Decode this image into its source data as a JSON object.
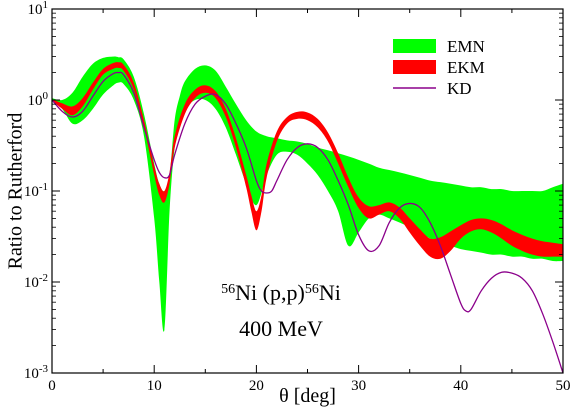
{
  "chart_data": {
    "type": "line",
    "xlabel": "θ [deg]",
    "ylabel": "Ratio to Rutherford",
    "xlim": [
      0,
      50
    ],
    "ylim": [
      0.001,
      10
    ],
    "yscale": "log",
    "grid": false,
    "legend_position": "top-right",
    "x_ticks": [
      "0",
      "10",
      "20",
      "30",
      "40",
      "50"
    ],
    "y_ticks": [
      {
        "base": "10",
        "exp": "-3"
      },
      {
        "base": "10",
        "exp": "-2"
      },
      {
        "base": "10",
        "exp": "-1"
      },
      {
        "base": "10",
        "exp": "0"
      },
      {
        "base": "10",
        "exp": "1"
      }
    ],
    "annotation": {
      "line1": {
        "pre": "56",
        "mid": "Ni (p,p)",
        "post_sup": "56",
        "post": "Ni"
      },
      "line2": "400 MeV"
    },
    "series": [
      {
        "name": "EMN",
        "style": "band",
        "color": "#00ff00",
        "x": [
          0,
          1,
          2,
          3,
          4,
          5,
          6,
          6.5,
          7,
          8,
          9,
          10,
          10.5,
          11,
          11.5,
          12,
          12.5,
          13,
          14,
          15,
          16,
          17,
          18,
          19,
          20,
          21,
          22,
          23,
          24,
          25,
          26,
          27,
          28,
          29,
          30,
          31,
          32,
          33,
          34,
          35,
          36,
          37,
          38,
          39,
          40,
          41,
          42,
          43,
          44,
          45,
          46,
          47,
          48,
          49,
          50
        ],
        "lower": [
          1.0,
          0.8,
          0.55,
          0.6,
          0.8,
          1.15,
          1.45,
          1.55,
          1.5,
          1.0,
          0.4,
          0.05,
          0.01,
          0.003,
          0.06,
          0.3,
          0.6,
          0.8,
          1.0,
          1.0,
          0.8,
          0.5,
          0.25,
          0.12,
          0.07,
          0.15,
          0.25,
          0.27,
          0.25,
          0.2,
          0.15,
          0.1,
          0.06,
          0.025,
          0.035,
          0.05,
          0.055,
          0.05,
          0.045,
          0.04,
          0.035,
          0.03,
          0.027,
          0.025,
          0.023,
          0.022,
          0.021,
          0.02,
          0.02,
          0.019,
          0.019,
          0.018,
          0.018,
          0.017,
          0.017
        ],
        "upper": [
          1.05,
          1.0,
          1.2,
          1.8,
          2.5,
          2.9,
          3.0,
          2.95,
          2.8,
          1.8,
          0.7,
          0.2,
          0.12,
          0.1,
          0.15,
          0.6,
          1.1,
          1.6,
          2.2,
          2.4,
          2.1,
          1.4,
          0.9,
          0.6,
          0.45,
          0.4,
          0.38,
          0.36,
          0.35,
          0.33,
          0.3,
          0.28,
          0.26,
          0.24,
          0.22,
          0.2,
          0.18,
          0.17,
          0.16,
          0.15,
          0.14,
          0.13,
          0.125,
          0.12,
          0.115,
          0.11,
          0.11,
          0.105,
          0.105,
          0.1,
          0.1,
          0.1,
          0.1,
          0.11,
          0.12
        ]
      },
      {
        "name": "EKM",
        "style": "band",
        "color": "#ff0000",
        "x": [
          0,
          1,
          2,
          3,
          4,
          5,
          6,
          6.5,
          7,
          8,
          9,
          10,
          10.5,
          11,
          11.5,
          12,
          13,
          14,
          15,
          16,
          17,
          18,
          19,
          19.5,
          20,
          20.5,
          21,
          22,
          23,
          24,
          25,
          26,
          27,
          28,
          29,
          30,
          31,
          32,
          33,
          34,
          35,
          36,
          37,
          38,
          39,
          40,
          41,
          42,
          43,
          44,
          45,
          46,
          47,
          48,
          49,
          50
        ],
        "lower": [
          0.98,
          0.8,
          0.68,
          0.85,
          1.3,
          1.9,
          2.2,
          2.25,
          2.1,
          1.3,
          0.5,
          0.15,
          0.09,
          0.075,
          0.12,
          0.3,
          0.7,
          1.05,
          1.2,
          1.05,
          0.65,
          0.3,
          0.11,
          0.06,
          0.037,
          0.06,
          0.14,
          0.35,
          0.55,
          0.62,
          0.6,
          0.5,
          0.35,
          0.2,
          0.11,
          0.065,
          0.05,
          0.055,
          0.06,
          0.05,
          0.035,
          0.025,
          0.019,
          0.018,
          0.022,
          0.03,
          0.036,
          0.038,
          0.035,
          0.03,
          0.025,
          0.022,
          0.02,
          0.019,
          0.019,
          0.019
        ],
        "upper": [
          1.02,
          0.92,
          0.85,
          1.05,
          1.55,
          2.2,
          2.55,
          2.6,
          2.45,
          1.55,
          0.6,
          0.19,
          0.12,
          0.1,
          0.16,
          0.4,
          0.9,
          1.3,
          1.45,
          1.25,
          0.8,
          0.38,
          0.15,
          0.09,
          0.06,
          0.09,
          0.2,
          0.45,
          0.65,
          0.74,
          0.73,
          0.62,
          0.44,
          0.26,
          0.14,
          0.085,
          0.068,
          0.07,
          0.075,
          0.066,
          0.05,
          0.038,
          0.03,
          0.031,
          0.036,
          0.042,
          0.048,
          0.05,
          0.048,
          0.043,
          0.037,
          0.033,
          0.03,
          0.028,
          0.027,
          0.026
        ]
      },
      {
        "name": "KD",
        "style": "line",
        "color": "#8b008b",
        "x": [
          0,
          1,
          2,
          3,
          4,
          5,
          6,
          6.5,
          7,
          8,
          9,
          10,
          10.5,
          11,
          11.5,
          12,
          13,
          14,
          15,
          16,
          17,
          18,
          19,
          20,
          20.5,
          21,
          21.5,
          22,
          23,
          24,
          25,
          26,
          27,
          28,
          29,
          30,
          31,
          32,
          33,
          34,
          35,
          36,
          37,
          38,
          39,
          40,
          40.5,
          41,
          42,
          43,
          44,
          45,
          46,
          47,
          48,
          49,
          50
        ],
        "y": [
          1.0,
          0.75,
          0.65,
          0.75,
          1.1,
          1.6,
          1.95,
          2.0,
          1.9,
          1.2,
          0.5,
          0.22,
          0.16,
          0.14,
          0.15,
          0.25,
          0.55,
          0.9,
          1.1,
          1.15,
          0.9,
          0.55,
          0.3,
          0.13,
          0.1,
          0.095,
          0.1,
          0.13,
          0.22,
          0.3,
          0.33,
          0.3,
          0.22,
          0.13,
          0.07,
          0.033,
          0.022,
          0.025,
          0.045,
          0.065,
          0.073,
          0.066,
          0.045,
          0.025,
          0.012,
          0.0058,
          0.0048,
          0.005,
          0.008,
          0.011,
          0.0128,
          0.0125,
          0.011,
          0.008,
          0.0045,
          0.0022,
          0.001
        ]
      }
    ]
  }
}
